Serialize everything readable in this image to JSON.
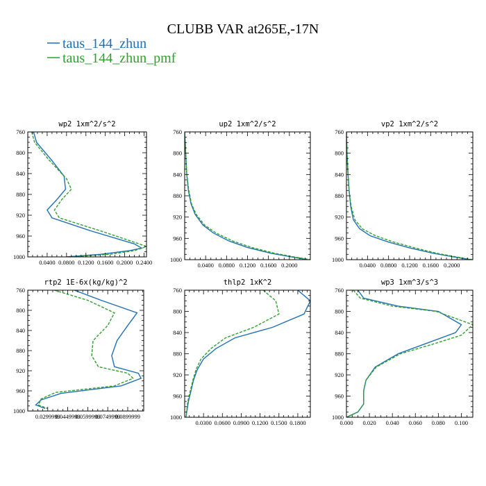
{
  "figure": {
    "title": "CLUBB VAR at265E,-17N",
    "legend": [
      {
        "label": "taus_144_zhun",
        "color": "#1f6fb4",
        "dash": "solid"
      },
      {
        "label": "taus_144_zhun_pmf",
        "color": "#2ca02c",
        "dash": "dashed"
      }
    ]
  },
  "chart_data": [
    {
      "type": "line",
      "title": "wp2  1xm^2/s^2",
      "xlabel": "",
      "ylabel": "",
      "xlim": [
        0.0,
        0.245
      ],
      "ylim": [
        760,
        1000
      ],
      "y_inverted": true,
      "xticks": [
        0.04,
        0.08,
        0.12,
        0.16,
        0.2,
        0.24
      ],
      "xtick_labels": [
        "0.0400",
        "0.0800",
        "0.1200",
        "0.1600",
        "0.2000",
        "0.2400"
      ],
      "yticks": [
        760,
        800,
        840,
        880,
        920,
        960,
        1000
      ],
      "series": [
        {
          "name": "taus_144_zhun",
          "color": "#1f6fb4",
          "dash": "solid",
          "x": [
            0.012,
            0.018,
            0.05,
            0.075,
            0.078,
            0.06,
            0.04,
            0.05,
            0.13,
            0.22,
            0.235,
            0.21,
            0.15,
            0.08
          ],
          "y": [
            760,
            780,
            815,
            845,
            870,
            890,
            910,
            925,
            950,
            975,
            983,
            988,
            995,
            1000
          ]
        },
        {
          "name": "taus_144_zhun_pmf",
          "color": "#2ca02c",
          "dash": "dashed",
          "x": [
            0.008,
            0.014,
            0.045,
            0.08,
            0.09,
            0.07,
            0.055,
            0.065,
            0.15,
            0.23,
            0.245,
            0.22,
            0.17,
            0.09
          ],
          "y": [
            760,
            780,
            815,
            850,
            870,
            890,
            910,
            925,
            950,
            975,
            980,
            988,
            995,
            1000
          ]
        }
      ]
    },
    {
      "type": "line",
      "title": "up2  1xm^2/s^2",
      "xlabel": "",
      "ylabel": "",
      "xlim": [
        0.0,
        0.24
      ],
      "ylim": [
        760,
        1000
      ],
      "y_inverted": true,
      "xticks": [
        0.04,
        0.08,
        0.12,
        0.16,
        0.2
      ],
      "xtick_labels": [
        "0.0400",
        "0.0800",
        "0.1200",
        "0.1600",
        "0.2000"
      ],
      "yticks": [
        760,
        800,
        840,
        880,
        920,
        960,
        1000
      ],
      "series": [
        {
          "name": "taus_144_zhun",
          "color": "#1f6fb4",
          "dash": "solid",
          "x": [
            0.0,
            0.002,
            0.004,
            0.007,
            0.012,
            0.02,
            0.035,
            0.055,
            0.085,
            0.12,
            0.165,
            0.205,
            0.235
          ],
          "y": [
            760,
            800,
            840,
            870,
            895,
            915,
            935,
            950,
            965,
            977,
            988,
            995,
            1000
          ]
        },
        {
          "name": "taus_144_zhun_pmf",
          "color": "#2ca02c",
          "dash": "dashed",
          "x": [
            0.0,
            0.002,
            0.004,
            0.008,
            0.013,
            0.022,
            0.038,
            0.06,
            0.092,
            0.128,
            0.172,
            0.21,
            0.24
          ],
          "y": [
            760,
            800,
            840,
            870,
            895,
            915,
            935,
            950,
            965,
            977,
            988,
            995,
            1000
          ]
        }
      ]
    },
    {
      "type": "line",
      "title": "vp2  1xm^2/s^2",
      "xlabel": "",
      "ylabel": "",
      "xlim": [
        0.0,
        0.24
      ],
      "ylim": [
        760,
        1000
      ],
      "y_inverted": true,
      "xticks": [
        0.04,
        0.08,
        0.12,
        0.16,
        0.2
      ],
      "xtick_labels": [
        "0.0400",
        "0.0800",
        "0.1200",
        "0.1600",
        "0.2000"
      ],
      "yticks": [
        760,
        800,
        840,
        880,
        920,
        960,
        1000
      ],
      "series": [
        {
          "name": "taus_144_zhun",
          "color": "#1f6fb4",
          "dash": "solid",
          "x": [
            0.0,
            0.001,
            0.003,
            0.005,
            0.008,
            0.013,
            0.025,
            0.045,
            0.08,
            0.12,
            0.165,
            0.205,
            0.235
          ],
          "y": [
            760,
            800,
            840,
            870,
            900,
            925,
            942,
            955,
            967,
            978,
            988,
            995,
            1000
          ]
        },
        {
          "name": "taus_144_zhun_pmf",
          "color": "#2ca02c",
          "dash": "dashed",
          "x": [
            0.0,
            0.001,
            0.003,
            0.005,
            0.009,
            0.016,
            0.03,
            0.055,
            0.09,
            0.13,
            0.172,
            0.21,
            0.24
          ],
          "y": [
            760,
            800,
            840,
            870,
            900,
            925,
            942,
            955,
            967,
            978,
            988,
            995,
            1000
          ]
        }
      ]
    },
    {
      "type": "line",
      "title": "rtp2  1E-6x(kg/kg)^2",
      "xlabel": "",
      "ylabel": "",
      "xlim": [
        0.015,
        0.102
      ],
      "ylim": [
        760,
        1000
      ],
      "y_inverted": true,
      "xticks": [
        0.03,
        0.045,
        0.06,
        0.075,
        0.09
      ],
      "xtick_labels": [
        "0.0299999",
        "0.0449999",
        "0.0599999",
        "0.0749999",
        "0.0899999"
      ],
      "yticks": [
        760,
        800,
        840,
        880,
        920,
        960,
        1000
      ],
      "series": [
        {
          "name": "taus_144_zhun",
          "color": "#1f6fb4",
          "dash": "solid",
          "x": [
            0.05,
            0.07,
            0.097,
            0.09,
            0.082,
            0.078,
            0.08,
            0.098,
            0.1,
            0.085,
            0.04,
            0.025,
            0.021,
            0.028
          ],
          "y": [
            760,
            780,
            805,
            830,
            860,
            890,
            912,
            925,
            935,
            950,
            965,
            978,
            988,
            995
          ]
        },
        {
          "name": "taus_144_zhun_pmf",
          "color": "#2ca02c",
          "dash": "dashed",
          "x": [
            0.035,
            0.06,
            0.08,
            0.075,
            0.064,
            0.063,
            0.068,
            0.09,
            0.094,
            0.08,
            0.036,
            0.025,
            0.023,
            0.03
          ],
          "y": [
            760,
            780,
            805,
            830,
            860,
            890,
            912,
            925,
            935,
            950,
            963,
            976,
            988,
            995
          ]
        }
      ]
    },
    {
      "type": "line",
      "title": "thlp2  1xK^2",
      "xlabel": "",
      "ylabel": "",
      "xlim": [
        0.0,
        0.2
      ],
      "ylim": [
        760,
        1000
      ],
      "y_inverted": true,
      "xticks": [
        0.03,
        0.06,
        0.09,
        0.12,
        0.15,
        0.18
      ],
      "xtick_labels": [
        "0.0300",
        "0.0600",
        "0.0900",
        "0.1200",
        "0.1500",
        "0.1800"
      ],
      "yticks": [
        760,
        800,
        840,
        880,
        920,
        960,
        1000
      ],
      "series": [
        {
          "name": "taus_144_zhun",
          "color": "#1f6fb4",
          "dash": "solid",
          "x": [
            0.175,
            0.2,
            0.19,
            0.14,
            0.08,
            0.05,
            0.03,
            0.02,
            0.014,
            0.01,
            0.006,
            0.002
          ],
          "y": [
            755,
            780,
            805,
            830,
            850,
            870,
            890,
            910,
            930,
            950,
            970,
            1000
          ]
        },
        {
          "name": "taus_144_zhun_pmf",
          "color": "#2ca02c",
          "dash": "dashed",
          "x": [
            0.12,
            0.145,
            0.15,
            0.11,
            0.065,
            0.042,
            0.026,
            0.018,
            0.013,
            0.009,
            0.005,
            0.002
          ],
          "y": [
            755,
            780,
            805,
            830,
            850,
            870,
            890,
            910,
            930,
            950,
            970,
            1000
          ]
        }
      ]
    },
    {
      "type": "line",
      "title": "wp3  1xm^3/s^3",
      "xlabel": "",
      "ylabel": "",
      "xlim": [
        0.0,
        0.11
      ],
      "ylim": [
        760,
        1000
      ],
      "y_inverted": true,
      "xticks": [
        0.0,
        0.02,
        0.04,
        0.06,
        0.08,
        0.1
      ],
      "xtick_labels": [
        "0.000",
        "0.020",
        "0.040",
        "0.060",
        "0.080",
        "0.100"
      ],
      "yticks": [
        760,
        800,
        840,
        880,
        920,
        960,
        1000
      ],
      "series": [
        {
          "name": "taus_144_zhun",
          "color": "#1f6fb4",
          "dash": "solid",
          "x": [
            0.01,
            0.015,
            0.045,
            0.08,
            0.1,
            0.095,
            0.07,
            0.045,
            0.025,
            0.017,
            0.015,
            0.015,
            0.01,
            0.0
          ],
          "y": [
            760,
            775,
            790,
            800,
            825,
            840,
            860,
            880,
            905,
            930,
            950,
            975,
            990,
            1000
          ]
        },
        {
          "name": "taus_144_zhun_pmf",
          "color": "#2ca02c",
          "dash": "dashed",
          "x": [
            0.006,
            0.012,
            0.04,
            0.078,
            0.11,
            0.1,
            0.075,
            0.047,
            0.026,
            0.017,
            0.015,
            0.015,
            0.01,
            0.0
          ],
          "y": [
            760,
            775,
            790,
            800,
            825,
            845,
            862,
            880,
            905,
            930,
            950,
            975,
            990,
            1000
          ]
        }
      ]
    }
  ]
}
